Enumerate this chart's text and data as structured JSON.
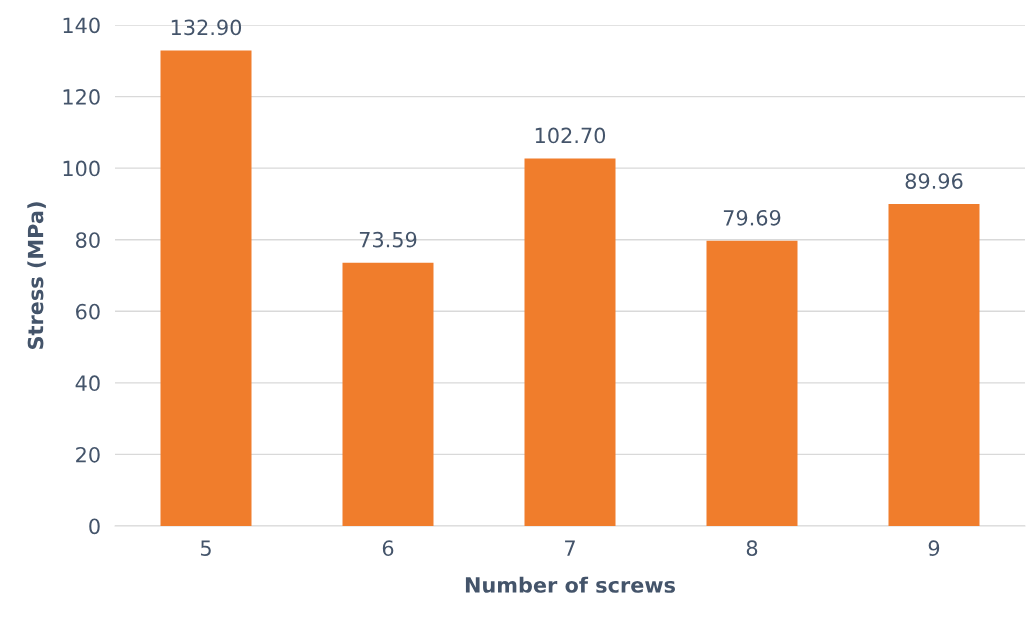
{
  "chart_data": {
    "type": "bar",
    "xlabel": "Number of screws",
    "ylabel": "Stress (MPa)",
    "categories": [
      "5",
      "6",
      "7",
      "8",
      "9"
    ],
    "values": [
      132.9,
      73.59,
      102.7,
      79.69,
      89.96
    ],
    "value_labels": [
      "132.90",
      "73.59",
      "102.70",
      "79.69",
      "89.96"
    ],
    "color": "#f07d2c",
    "ylim": [
      0,
      140
    ],
    "yticks": [
      0,
      20,
      40,
      60,
      80,
      100,
      120,
      140
    ],
    "grid": "y",
    "legend": false
  }
}
